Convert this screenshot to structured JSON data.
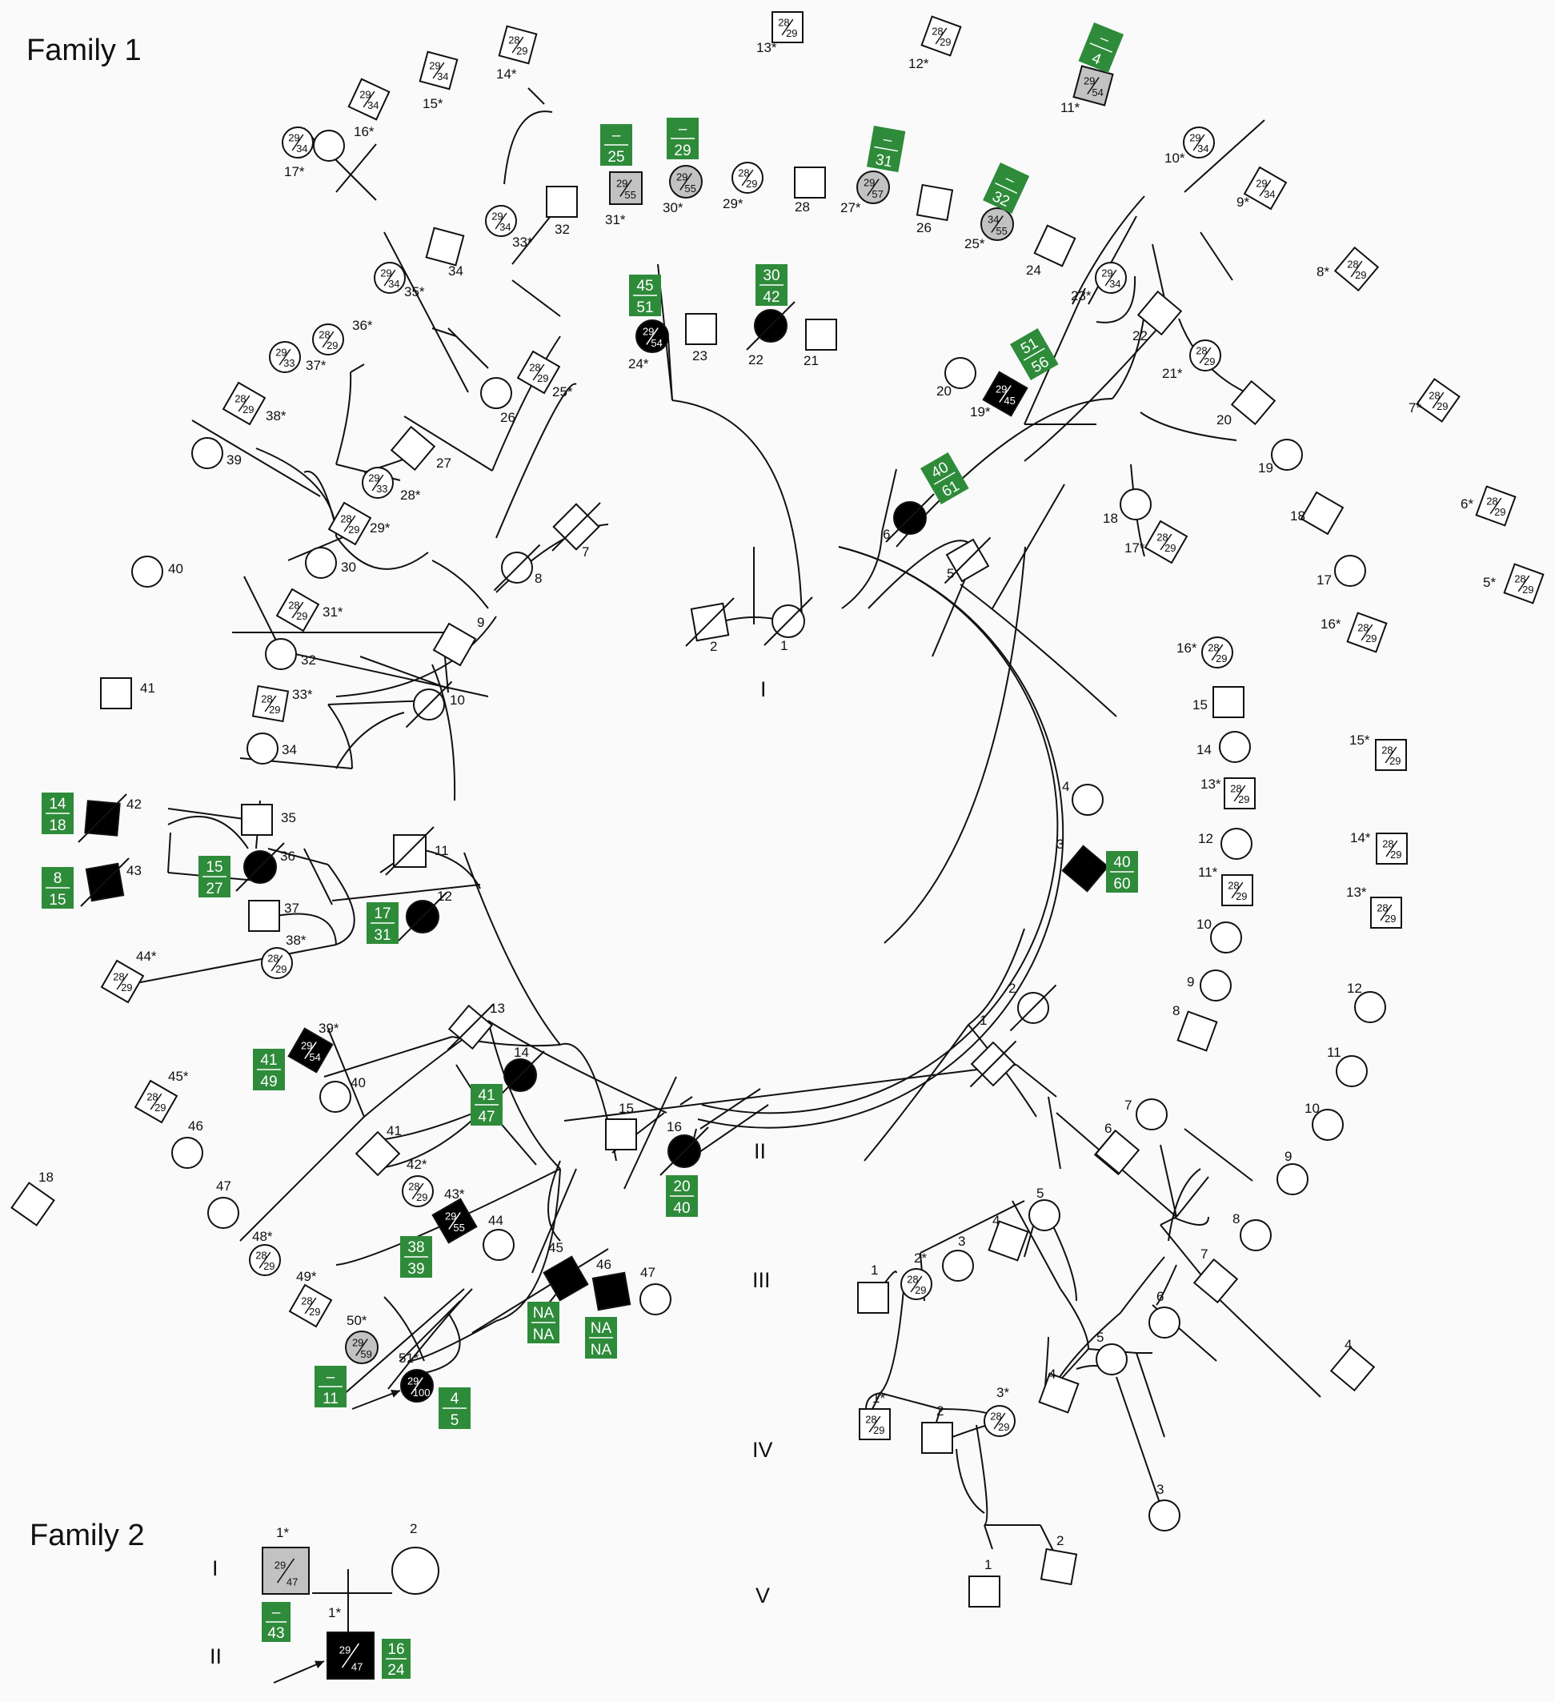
{
  "titles": {
    "family1": "Family 1",
    "family2": "Family 2"
  },
  "generations": [
    "I",
    "II",
    "III",
    "IV",
    "V"
  ],
  "colors": {
    "affected": "#000000",
    "carrier": "#c2c2c2",
    "box": "#2e8b3a",
    "line": "#111111"
  },
  "family1": {
    "gen1": [
      {
        "label": "1",
        "sex": "F",
        "deceased": true
      },
      {
        "label": "2",
        "sex": "M",
        "deceased": true
      }
    ],
    "gen2": [
      {
        "label": "3",
        "sex": "M",
        "status": "affected",
        "repeats": [
          "40",
          "60"
        ]
      },
      {
        "label": "6",
        "sex": "F",
        "status": "affected",
        "deceased": true,
        "repeats": [
          "40",
          "61"
        ]
      },
      {
        "label": "12",
        "sex": "F",
        "status": "affected",
        "deceased": true,
        "repeats": [
          "17",
          "31"
        ]
      },
      {
        "label": "14",
        "sex": "F",
        "status": "affected",
        "deceased": true,
        "repeats": [
          "41",
          "47"
        ]
      },
      {
        "label": "16",
        "sex": "F",
        "status": "affected",
        "deceased": true,
        "repeats": [
          "20",
          "40"
        ]
      },
      {
        "label": "36",
        "sex": "F",
        "status": "affected",
        "deceased": true,
        "repeats": [
          "15",
          "27"
        ]
      }
    ],
    "gen3": [
      {
        "label": "19*",
        "sex": "M",
        "status": "affected",
        "genotype": [
          "29",
          "45"
        ],
        "repeats": [
          "51",
          "56"
        ]
      },
      {
        "label": "22",
        "sex": "F",
        "status": "affected",
        "deceased": true,
        "repeats": [
          "30",
          "42"
        ]
      },
      {
        "label": "24*",
        "sex": "F",
        "status": "affected",
        "genotype": [
          "29",
          "54"
        ],
        "repeats": [
          "45",
          "51"
        ]
      },
      {
        "label": "39*",
        "sex": "M",
        "status": "affected",
        "genotype": [
          "29",
          "54"
        ],
        "repeats": [
          "41",
          "49"
        ]
      },
      {
        "label": "42",
        "sex": "M",
        "status": "affected",
        "deceased": true,
        "repeats": [
          "14",
          "18"
        ]
      },
      {
        "label": "43",
        "sex": "M",
        "status": "affected",
        "deceased": true,
        "repeats": [
          "8",
          "15"
        ]
      },
      {
        "label": "43*",
        "sex": "M",
        "status": "affected",
        "genotype": [
          "29",
          "55"
        ],
        "repeats": [
          "38",
          "39"
        ]
      },
      {
        "label": "45",
        "sex": "M",
        "status": "affected",
        "repeats": [
          "NA",
          "NA"
        ]
      },
      {
        "label": "46",
        "sex": "M",
        "status": "affected",
        "repeats": [
          "NA",
          "NA"
        ]
      }
    ],
    "gen4": [
      {
        "label": "11*",
        "sex": "M",
        "status": "carrier",
        "genotype": [
          "29",
          "54"
        ],
        "repeats": [
          "–",
          "4"
        ]
      },
      {
        "label": "25*",
        "sex": "F",
        "status": "carrier",
        "genotype": [
          "34",
          "55"
        ],
        "repeats": [
          "–",
          "32"
        ]
      },
      {
        "label": "27*",
        "sex": "F",
        "status": "carrier",
        "genotype": [
          "29",
          "57"
        ],
        "repeats": [
          "–",
          "31"
        ]
      },
      {
        "label": "30*",
        "sex": "F",
        "status": "carrier",
        "genotype": [
          "29",
          "55"
        ],
        "repeats": [
          "–",
          "29"
        ]
      },
      {
        "label": "31*",
        "sex": "M",
        "status": "carrier",
        "genotype": [
          "29",
          "55"
        ],
        "repeats": [
          "–",
          "25"
        ]
      },
      {
        "label": "50*",
        "sex": "F",
        "status": "carrier",
        "genotype": [
          "29",
          "59"
        ],
        "repeats": [
          "–",
          "11"
        ]
      },
      {
        "label": "51*",
        "sex": "F",
        "status": "affected",
        "proband": true,
        "genotype": [
          "29",
          "100"
        ],
        "repeats": [
          "4",
          "5"
        ]
      }
    ]
  },
  "family2": {
    "members": [
      {
        "gen": "I",
        "label": "1*",
        "sex": "M",
        "status": "carrier",
        "genotype": [
          "29",
          "47"
        ],
        "repeats": [
          "–",
          "43"
        ]
      },
      {
        "gen": "I",
        "label": "2",
        "sex": "F"
      },
      {
        "gen": "II",
        "label": "1*",
        "sex": "M",
        "status": "affected",
        "proband": true,
        "genotype": [
          "29",
          "47"
        ],
        "repeats": [
          "16",
          "24"
        ]
      }
    ]
  }
}
